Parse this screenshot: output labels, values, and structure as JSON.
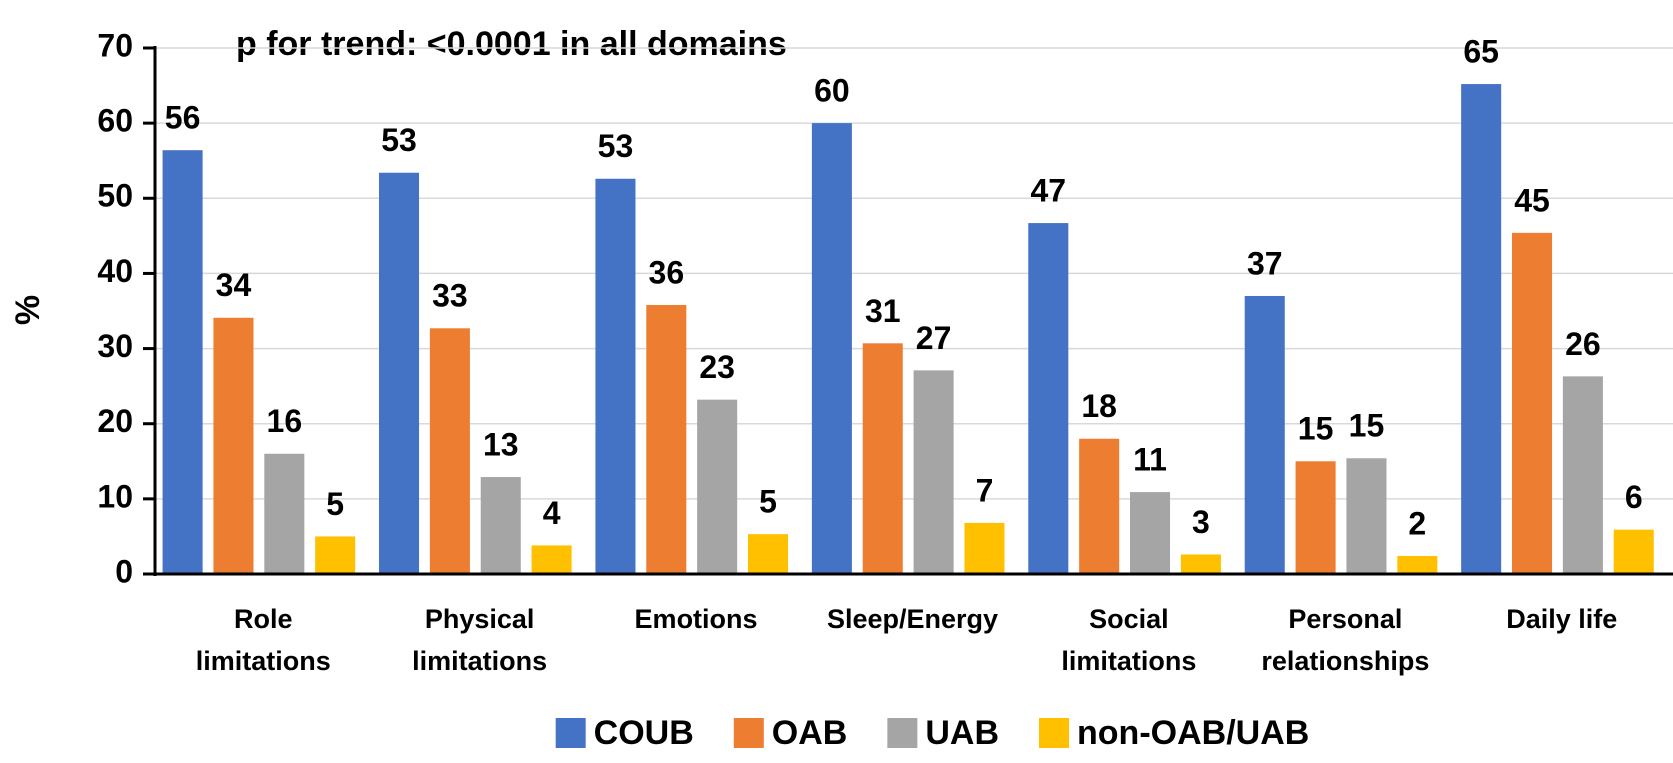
{
  "chart_data": {
    "type": "bar",
    "annotation": "p for trend: <0.0001 in all domains",
    "ylabel": "%",
    "categories": [
      "Role limitations",
      "Physical limitations",
      "Emotions",
      "Sleep/Energy",
      "Social limitations",
      "Personal relationships",
      "Daily life"
    ],
    "series": [
      {
        "name": "COUB",
        "color": "#4472c4",
        "values": [
          56.4,
          53.4,
          52.6,
          60,
          46.7,
          37,
          65.2
        ],
        "value_labels": [
          "56",
          "53",
          "53",
          "60",
          "47",
          "37",
          "65"
        ]
      },
      {
        "name": "OAB",
        "color": "#ed7d31",
        "values": [
          34.1,
          32.7,
          35.8,
          30.7,
          18,
          15,
          45.4
        ],
        "value_labels": [
          "34",
          "33",
          "36",
          "31",
          "18",
          "15",
          "45"
        ]
      },
      {
        "name": "UAB",
        "color": "#a5a5a5",
        "values": [
          16,
          12.9,
          23.2,
          27.1,
          10.9,
          15.4,
          26.3
        ],
        "value_labels": [
          "16",
          "13",
          "23",
          "27",
          "11",
          "15",
          "26"
        ]
      },
      {
        "name": "non-OAB/UAB",
        "color": "#ffc000",
        "values": [
          5,
          3.8,
          5.3,
          6.8,
          2.6,
          2.4,
          5.9
        ],
        "value_labels": [
          "5",
          "4",
          "5",
          "7",
          "3",
          "2",
          "6"
        ]
      }
    ],
    "ylim": [
      0,
      70
    ],
    "yticks": [
      0,
      10,
      20,
      30,
      40,
      50,
      60,
      70
    ],
    "grid": true,
    "legend": "bottom"
  }
}
